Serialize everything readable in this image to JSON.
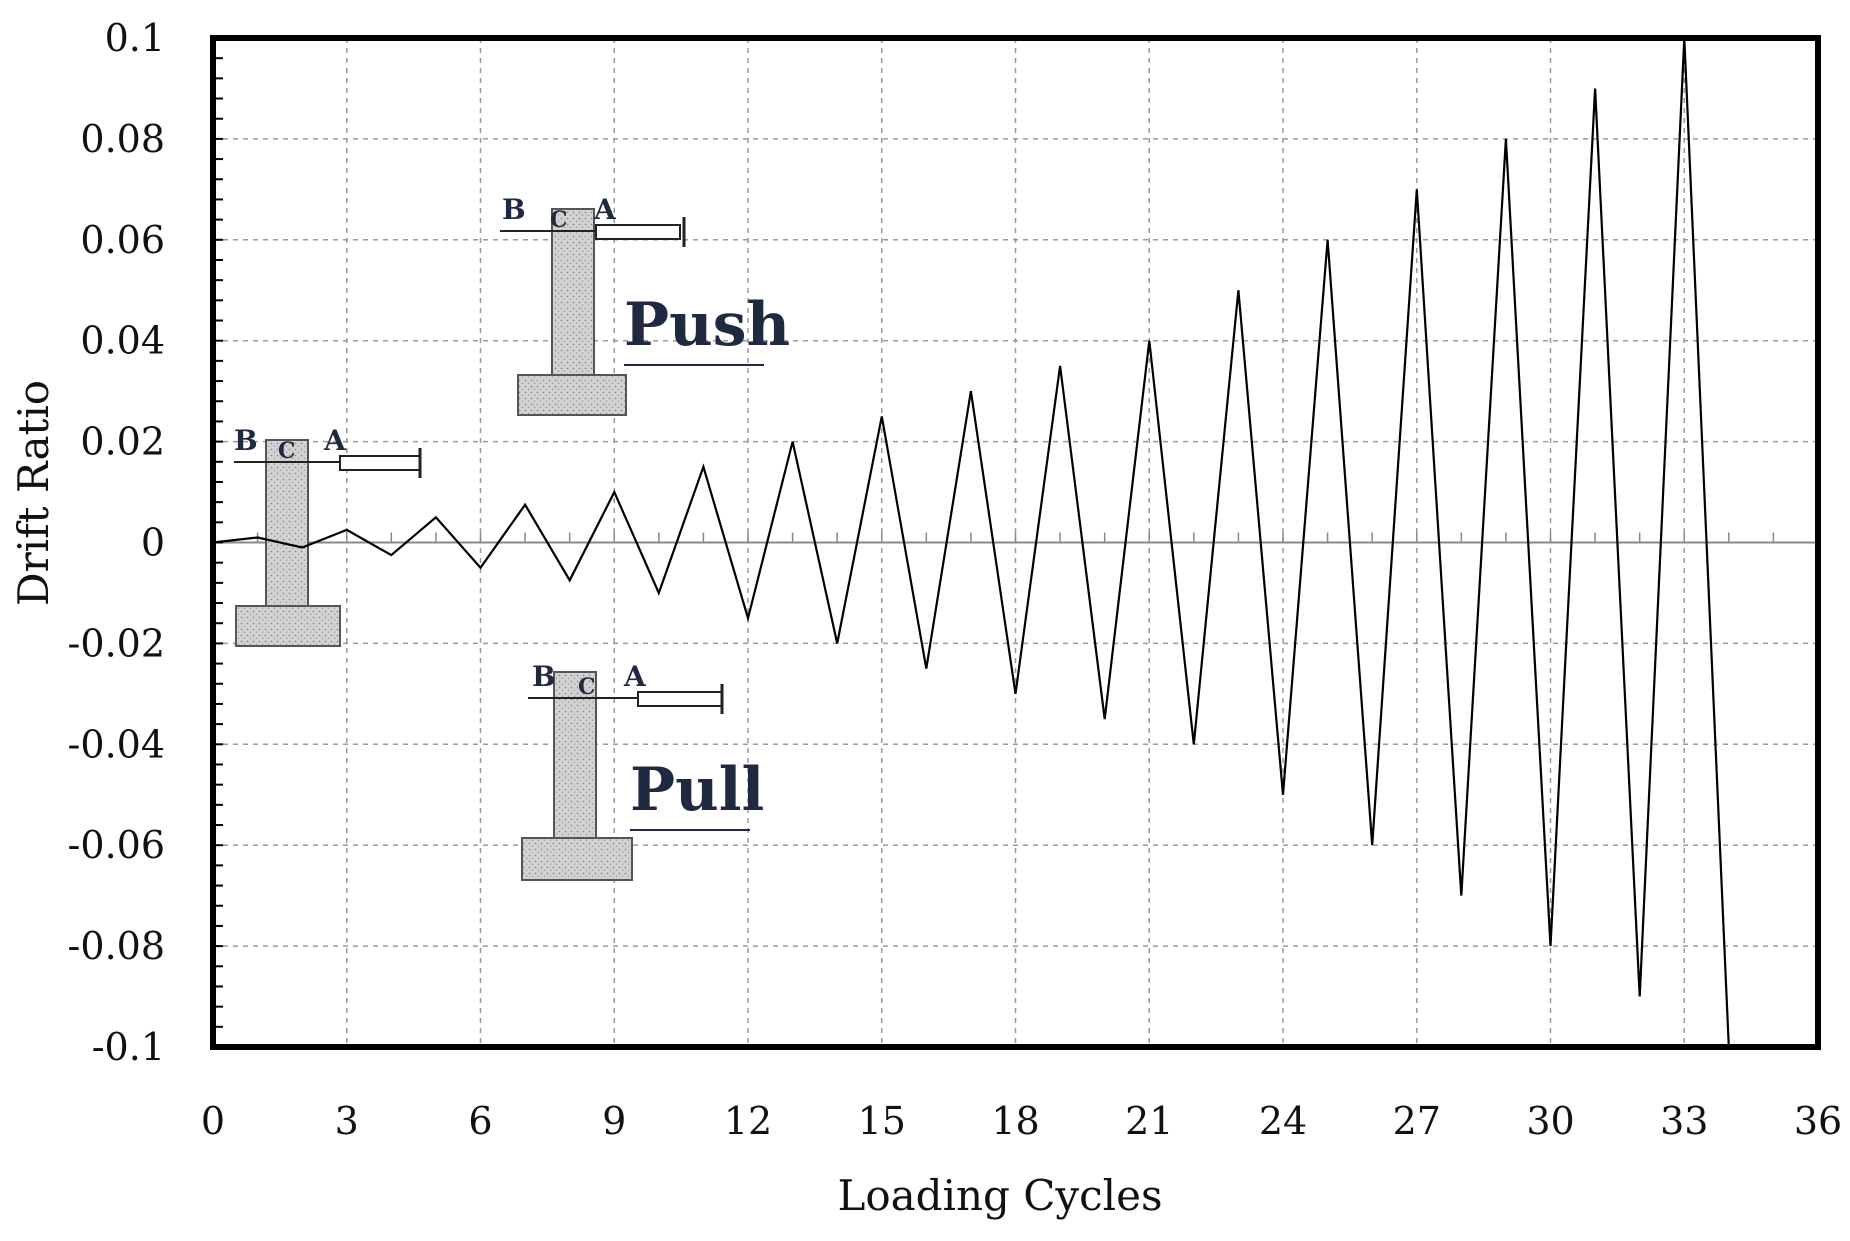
{
  "chart_data": {
    "type": "line",
    "xlabel": "Loading Cycles",
    "ylabel": "Drift Ratio",
    "xlim": [
      0,
      36
    ],
    "ylim": [
      -0.1,
      0.1
    ],
    "xticks": [
      0,
      3,
      6,
      9,
      12,
      15,
      18,
      21,
      24,
      27,
      30,
      33,
      36
    ],
    "yticks": [
      0.1,
      0.08,
      0.06,
      0.04,
      0.02,
      0,
      -0.02,
      -0.04,
      -0.06,
      -0.08,
      -0.1
    ],
    "ytick_labels": [
      "0.1",
      "0.08",
      "0.06",
      "0.04",
      "0.02",
      "0",
      "-0.02",
      "-0.04",
      "-0.06",
      "-0.08",
      "-0.1"
    ],
    "grid": true,
    "series": [
      {
        "x": [
          0,
          1,
          2,
          3,
          4,
          5,
          6,
          7,
          8,
          9,
          10,
          11,
          12,
          13,
          14,
          15,
          16,
          17,
          18,
          19,
          20,
          21,
          22,
          23,
          24,
          25,
          26,
          27,
          28,
          29,
          30,
          31,
          32,
          33,
          34
        ],
        "y": [
          0,
          0.001,
          -0.001,
          0.0025,
          -0.0025,
          0.005,
          -0.005,
          0.0075,
          -0.0075,
          0.01,
          -0.01,
          0.015,
          -0.015,
          0.02,
          -0.02,
          0.025,
          -0.025,
          0.03,
          -0.03,
          0.035,
          -0.035,
          0.04,
          -0.04,
          0.05,
          -0.05,
          0.06,
          -0.06,
          0.07,
          -0.07,
          0.08,
          -0.08,
          0.09,
          -0.09,
          0.1,
          -0.1
        ]
      }
    ],
    "annotations": [
      {
        "text": "Push",
        "labels": [
          "B",
          "C",
          "A"
        ]
      },
      {
        "text": "Pull",
        "labels": [
          "B",
          "C",
          "A"
        ]
      },
      {
        "labels": [
          "B",
          "C",
          "A"
        ]
      }
    ],
    "colors": {
      "line": "#000000",
      "grid": "#9a9a9a",
      "axis": "#000000",
      "hatch": "#cfcfcf",
      "label": "#1f2a40"
    }
  }
}
